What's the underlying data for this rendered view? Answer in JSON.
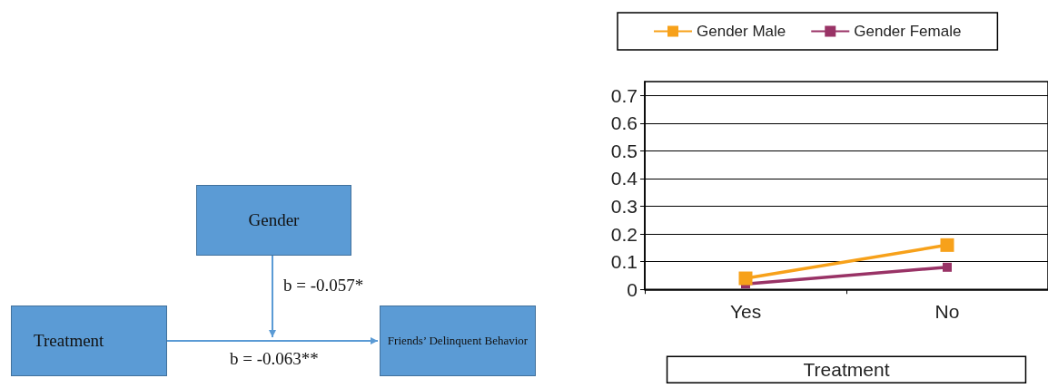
{
  "chart_data": [
    {
      "type": "other",
      "annotations": [
        "Gender",
        "Treatment",
        "Friends’ Delinquent Behavior",
        "b = -0.057*",
        "b = -0.063**"
      ]
    },
    {
      "type": "line",
      "xlabel": "Treatment",
      "categories": [
        "Yes",
        "No"
      ],
      "series": [
        {
          "name": "Gender Male",
          "color": "#f7a11a",
          "values": [
            0.04,
            0.16
          ]
        },
        {
          "name": "Gender Female",
          "color": "#993366",
          "values": [
            0.02,
            0.08
          ]
        }
      ],
      "ylim": [
        0,
        0.75
      ],
      "yticks": [
        0,
        0.1,
        0.2,
        0.3,
        0.4,
        0.5,
        0.6,
        0.7
      ],
      "grid": "y",
      "legend": "top",
      "marker": "square",
      "line_style": "solid"
    }
  ]
}
